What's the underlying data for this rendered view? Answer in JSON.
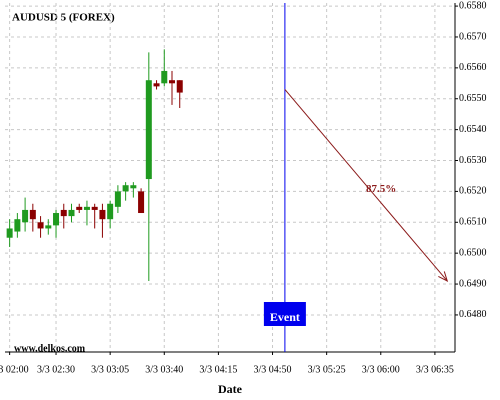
{
  "chart_data": {
    "type": "candlestick",
    "title": "AUDUSD 5 (FOREX)",
    "watermark": "www.delkos.com",
    "x_label": "Date",
    "x": [
      "02:00",
      "02:05",
      "02:10",
      "02:15",
      "02:20",
      "02:25",
      "02:30",
      "02:35",
      "02:40",
      "02:45",
      "02:50",
      "02:55",
      "03:00",
      "03:05",
      "03:10",
      "03:15",
      "03:20",
      "03:25",
      "03:30",
      "03:35",
      "03:40",
      "03:45",
      "03:50"
    ],
    "open": [
      0.6505,
      0.6507,
      0.651,
      0.6514,
      0.651,
      0.6508,
      0.6509,
      0.6514,
      0.6512,
      0.6515,
      0.6514,
      0.6515,
      0.6514,
      0.6511,
      0.6515,
      0.652,
      0.6521,
      0.652,
      0.6524,
      0.6555,
      0.6555,
      0.6556,
      0.6556
    ],
    "high": [
      0.6511,
      0.6513,
      0.6518,
      0.6516,
      0.6512,
      0.6511,
      0.6514,
      0.6516,
      0.6516,
      0.6516,
      0.6517,
      0.6516,
      0.6516,
      0.6517,
      0.6522,
      0.6523,
      0.6523,
      0.6521,
      0.6565,
      0.6556,
      0.6566,
      0.6559,
      0.6556
    ],
    "low": [
      0.6502,
      0.6505,
      0.6507,
      0.6507,
      0.6505,
      0.6506,
      0.6505,
      0.6508,
      0.651,
      0.6513,
      0.6509,
      0.6508,
      0.6505,
      0.6508,
      0.6513,
      0.6517,
      0.6518,
      0.6513,
      0.6491,
      0.6553,
      0.6554,
      0.6548,
      0.6547
    ],
    "close": [
      0.6508,
      0.6511,
      0.6514,
      0.6511,
      0.6508,
      0.6509,
      0.6513,
      0.6512,
      0.6514,
      0.6514,
      0.6515,
      0.6514,
      0.6511,
      0.6516,
      0.652,
      0.6522,
      0.6522,
      0.6513,
      0.6556,
      0.6554,
      0.6559,
      0.6555,
      0.6552
    ],
    "up_color": "#1f9a1f",
    "down_color": "#8b0000",
    "xlim": [
      "01:57",
      "06:48"
    ],
    "xticks": [
      {
        "value": "02:00",
        "label": "3/3 02:00"
      },
      {
        "value": "02:30",
        "label": "3/3 02:30"
      },
      {
        "value": "03:05",
        "label": "3/3 03:05"
      },
      {
        "value": "03:40",
        "label": "3/3 03:40"
      },
      {
        "value": "04:15",
        "label": "3/3 04:15"
      },
      {
        "value": "04:50",
        "label": "3/3 04:50"
      },
      {
        "value": "05:25",
        "label": "3/3 05:25"
      },
      {
        "value": "06:00",
        "label": "3/3 06:00"
      },
      {
        "value": "06:35",
        "label": "3/3 06:35"
      }
    ],
    "ylim": [
      0.6468,
      0.6581
    ],
    "yticks": [
      {
        "value": 0.648,
        "label": "0.6480"
      },
      {
        "value": 0.649,
        "label": "0.6490"
      },
      {
        "value": 0.65,
        "label": "0.6500"
      },
      {
        "value": 0.651,
        "label": "0.6510"
      },
      {
        "value": 0.652,
        "label": "0.6520"
      },
      {
        "value": 0.653,
        "label": "0.6530"
      },
      {
        "value": 0.654,
        "label": "0.6540"
      },
      {
        "value": 0.655,
        "label": "0.6550"
      },
      {
        "value": 0.656,
        "label": "0.6560"
      },
      {
        "value": 0.657,
        "label": "0.6570"
      },
      {
        "value": 0.658,
        "label": "0.6580"
      }
    ],
    "grid": true,
    "event": {
      "label": "Event",
      "x": "04:58",
      "color": "#0000ee"
    },
    "arrow": {
      "x": [
        "04:58",
        "06:43"
      ],
      "y": [
        0.6553,
        0.6491
      ],
      "label": "87.5%",
      "color": "#8b1a1a"
    }
  }
}
